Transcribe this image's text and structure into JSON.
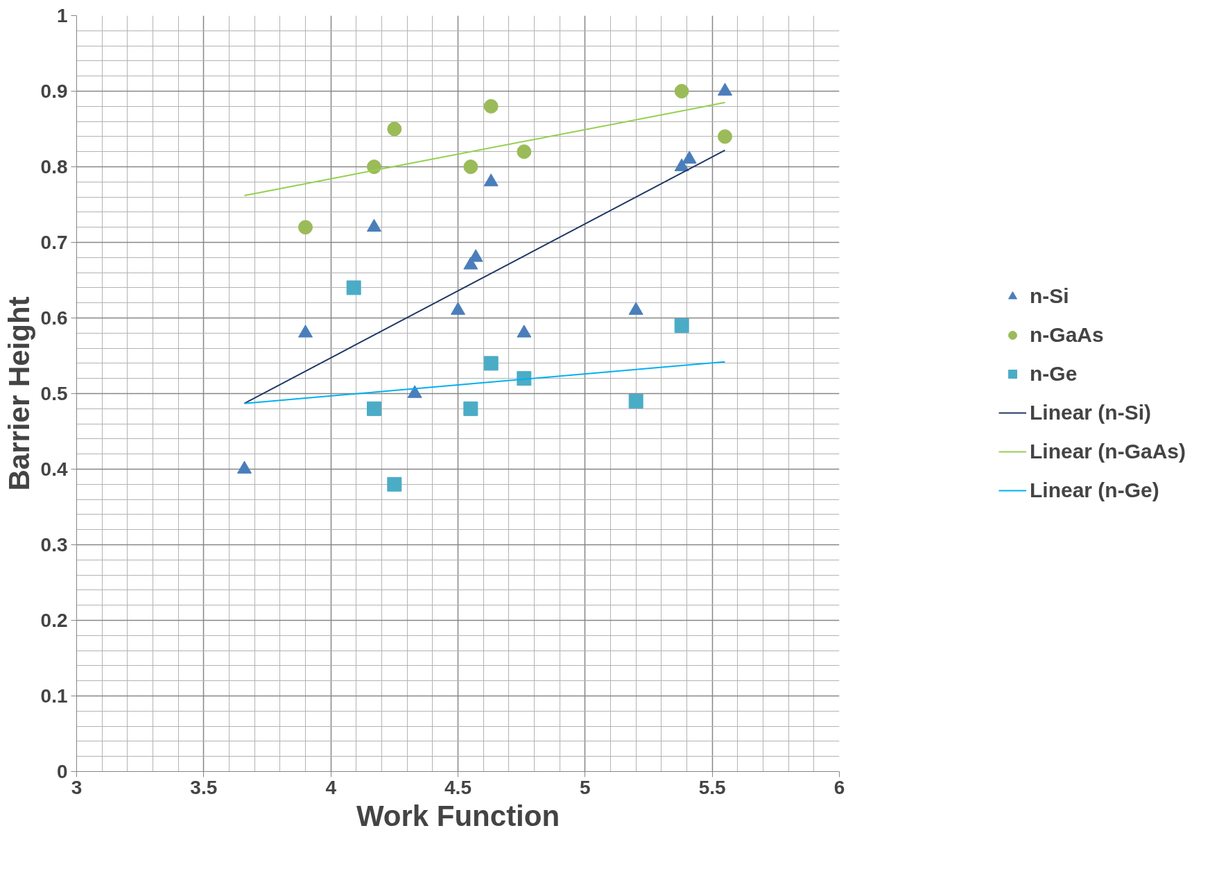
{
  "chart_data": {
    "type": "scatter",
    "xlabel": "Work Function",
    "ylabel": "Barrier Height",
    "xlim": [
      3,
      6
    ],
    "xticks": [
      3,
      3.5,
      4,
      4.5,
      5,
      5.5,
      6
    ],
    "ylim": [
      0,
      1
    ],
    "yticks": [
      0,
      0.1,
      0.2,
      0.3,
      0.4,
      0.5,
      0.6,
      0.7,
      0.8,
      0.9,
      1
    ],
    "grid": true,
    "legend": "right",
    "series": [
      {
        "name": "n-Si",
        "marker": "triangle",
        "color": "#4a7ebb",
        "x": [
          3.66,
          3.9,
          4.17,
          4.33,
          4.5,
          4.55,
          4.57,
          4.63,
          4.76,
          5.2,
          5.38,
          5.41,
          5.55
        ],
        "values": [
          0.4,
          0.58,
          0.72,
          0.5,
          0.61,
          0.67,
          0.68,
          0.78,
          0.58,
          0.61,
          0.8,
          0.81,
          0.9
        ]
      },
      {
        "name": "n-GaAs",
        "marker": "circle",
        "color": "#9bbb59",
        "x": [
          3.9,
          4.17,
          4.25,
          4.55,
          4.63,
          4.76,
          5.38,
          5.55
        ],
        "values": [
          0.72,
          0.8,
          0.85,
          0.8,
          0.88,
          0.82,
          0.9,
          0.84
        ]
      },
      {
        "name": "n-Ge",
        "marker": "square",
        "color": "#4bacc6",
        "x": [
          4.09,
          4.17,
          4.25,
          4.55,
          4.63,
          4.76,
          5.2,
          5.38
        ],
        "values": [
          0.64,
          0.48,
          0.38,
          0.48,
          0.54,
          0.52,
          0.49,
          0.59
        ]
      },
      {
        "name": "Linear (n-Si)",
        "type": "line",
        "color": "#1f3864",
        "x": [
          3.66,
          5.55
        ],
        "values": [
          0.487,
          0.822
        ]
      },
      {
        "name": "Linear (n-GaAs)",
        "type": "line",
        "color": "#92d050",
        "x": [
          3.66,
          5.55
        ],
        "values": [
          0.762,
          0.885
        ]
      },
      {
        "name": "Linear (n-Ge)",
        "type": "line",
        "color": "#00b0f0",
        "x": [
          3.66,
          5.55
        ],
        "values": [
          0.487,
          0.542
        ]
      }
    ]
  }
}
